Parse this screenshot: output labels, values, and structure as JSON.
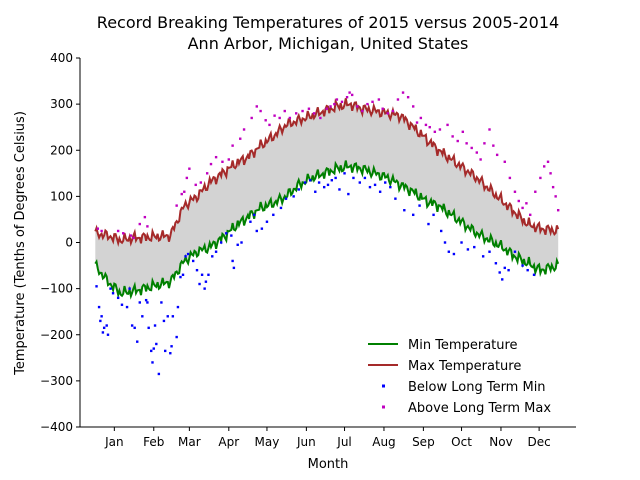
{
  "chart_data": {
    "type": "line",
    "title": [
      "Record Breaking Temperatures of 2015 versus 2005-2014",
      "Ann Arbor, Michigan, United States"
    ],
    "xlabel": "Month",
    "ylabel": "Temperature (Tenths of Degrees Celsius)",
    "ylim": [
      -400,
      400
    ],
    "yticks": [
      -400,
      -300,
      -200,
      -100,
      0,
      100,
      200,
      300,
      400
    ],
    "xlim": [
      -12,
      378
    ],
    "months": [
      "Jan",
      "Feb",
      "Mar",
      "Apr",
      "May",
      "Jun",
      "Jul",
      "Aug",
      "Sep",
      "Oct",
      "Nov",
      "Dec"
    ],
    "month_ticks": [
      15,
      46,
      74,
      105,
      135,
      166,
      196,
      227,
      258,
      288,
      319,
      349
    ],
    "legend_position": "lower-right",
    "colors": {
      "min_line": "#008000",
      "max_line": "#a52a2a",
      "fill": "#d3d3d3",
      "below_points": "#0000ff",
      "above_points": "#c000c0"
    },
    "series": [
      {
        "name": "Min Temperature",
        "kind": "line",
        "x": [
          0,
          10,
          20,
          31,
          45,
          59,
          70,
          80,
          90,
          100,
          110,
          120,
          130,
          140,
          150,
          160,
          170,
          180,
          190,
          200,
          210,
          220,
          230,
          240,
          250,
          260,
          270,
          280,
          290,
          300,
          310,
          320,
          330,
          340,
          350,
          364
        ],
        "y": [
          -50,
          -85,
          -110,
          -105,
          -95,
          -85,
          -40,
          -20,
          -10,
          10,
          35,
          55,
          75,
          85,
          100,
          125,
          140,
          150,
          160,
          165,
          160,
          150,
          140,
          125,
          110,
          90,
          80,
          60,
          40,
          20,
          5,
          -10,
          -30,
          -45,
          -60,
          -50
        ]
      },
      {
        "name": "Max Temperature",
        "kind": "line",
        "x": [
          0,
          10,
          20,
          31,
          45,
          59,
          70,
          80,
          90,
          100,
          110,
          120,
          130,
          140,
          150,
          160,
          170,
          180,
          190,
          200,
          210,
          220,
          230,
          240,
          250,
          260,
          270,
          280,
          290,
          300,
          310,
          320,
          330,
          340,
          350,
          364
        ],
        "y": [
          20,
          15,
          5,
          10,
          12,
          15,
          80,
          100,
          130,
          150,
          170,
          185,
          210,
          230,
          255,
          265,
          275,
          285,
          295,
          300,
          290,
          285,
          280,
          275,
          250,
          225,
          200,
          180,
          160,
          140,
          115,
          90,
          65,
          40,
          30,
          25
        ]
      },
      {
        "name": "Below Long Term Min",
        "kind": "scatter",
        "points": [
          [
            1,
            -95
          ],
          [
            3,
            -140
          ],
          [
            4,
            -170
          ],
          [
            5,
            -160
          ],
          [
            6,
            -195
          ],
          [
            7,
            -185
          ],
          [
            9,
            -180
          ],
          [
            10,
            -200
          ],
          [
            12,
            -100
          ],
          [
            14,
            -110
          ],
          [
            18,
            -120
          ],
          [
            21,
            -135
          ],
          [
            25,
            -140
          ],
          [
            27,
            -100
          ],
          [
            29,
            -180
          ],
          [
            31,
            -185
          ],
          [
            33,
            -215
          ],
          [
            35,
            -130
          ],
          [
            37,
            -160
          ],
          [
            40,
            -125
          ],
          [
            41,
            -130
          ],
          [
            42,
            -185
          ],
          [
            44,
            -235
          ],
          [
            45,
            -260
          ],
          [
            46,
            -230
          ],
          [
            47,
            -180
          ],
          [
            48,
            -220
          ],
          [
            50,
            -285
          ],
          [
            52,
            -130
          ],
          [
            54,
            -170
          ],
          [
            55,
            -235
          ],
          [
            57,
            -160
          ],
          [
            59,
            -240
          ],
          [
            60,
            -225
          ],
          [
            61,
            -160
          ],
          [
            64,
            -205
          ],
          [
            65,
            -140
          ],
          [
            67,
            -75
          ],
          [
            69,
            -70
          ],
          [
            71,
            -30
          ],
          [
            73,
            -25
          ],
          [
            77,
            -40
          ],
          [
            80,
            -60
          ],
          [
            82,
            -90
          ],
          [
            84,
            -70
          ],
          [
            86,
            -100
          ],
          [
            87,
            -85
          ],
          [
            89,
            -70
          ],
          [
            92,
            -30
          ],
          [
            95,
            -20
          ],
          [
            99,
            0
          ],
          [
            103,
            20
          ],
          [
            107,
            15
          ],
          [
            108,
            -40
          ],
          [
            109,
            -55
          ],
          [
            112,
            -5
          ],
          [
            115,
            0
          ],
          [
            122,
            45
          ],
          [
            125,
            60
          ],
          [
            127,
            25
          ],
          [
            131,
            30
          ],
          [
            135,
            45
          ],
          [
            140,
            60
          ],
          [
            146,
            75
          ],
          [
            150,
            95
          ],
          [
            156,
            100
          ],
          [
            160,
            115
          ],
          [
            165,
            130
          ],
          [
            169,
            135
          ],
          [
            173,
            110
          ],
          [
            176,
            130
          ],
          [
            180,
            120
          ],
          [
            183,
            125
          ],
          [
            186,
            135
          ],
          [
            189,
            140
          ],
          [
            192,
            115
          ],
          [
            196,
            150
          ],
          [
            199,
            105
          ],
          [
            203,
            140
          ],
          [
            208,
            130
          ],
          [
            212,
            140
          ],
          [
            216,
            120
          ],
          [
            220,
            125
          ],
          [
            224,
            110
          ],
          [
            228,
            130
          ],
          [
            232,
            120
          ],
          [
            236,
            95
          ],
          [
            243,
            70
          ],
          [
            250,
            60
          ],
          [
            255,
            80
          ],
          [
            262,
            40
          ],
          [
            266,
            60
          ],
          [
            272,
            25
          ],
          [
            275,
            0
          ],
          [
            278,
            -20
          ],
          [
            282,
            -25
          ],
          [
            288,
            0
          ],
          [
            293,
            -15
          ],
          [
            298,
            -10
          ],
          [
            305,
            -30
          ],
          [
            310,
            -20
          ],
          [
            315,
            -45
          ],
          [
            318,
            -65
          ],
          [
            320,
            -80
          ],
          [
            322,
            -55
          ],
          [
            325,
            -60
          ],
          [
            330,
            -20
          ],
          [
            336,
            -50
          ],
          [
            340,
            -60
          ],
          [
            345,
            -70
          ]
        ]
      },
      {
        "name": "Above Long Term Max",
        "kind": "scatter",
        "points": [
          [
            2,
            30
          ],
          [
            5,
            25
          ],
          [
            18,
            25
          ],
          [
            22,
            20
          ],
          [
            28,
            15
          ],
          [
            30,
            10
          ],
          [
            35,
            40
          ],
          [
            39,
            55
          ],
          [
            41,
            35
          ],
          [
            64,
            80
          ],
          [
            68,
            105
          ],
          [
            70,
            110
          ],
          [
            72,
            140
          ],
          [
            74,
            160
          ],
          [
            79,
            125
          ],
          [
            83,
            130
          ],
          [
            88,
            150
          ],
          [
            91,
            170
          ],
          [
            95,
            185
          ],
          [
            100,
            175
          ],
          [
            105,
            180
          ],
          [
            108,
            210
          ],
          [
            114,
            225
          ],
          [
            117,
            245
          ],
          [
            123,
            270
          ],
          [
            127,
            295
          ],
          [
            130,
            285
          ],
          [
            134,
            265
          ],
          [
            137,
            255
          ],
          [
            141,
            275
          ],
          [
            145,
            270
          ],
          [
            149,
            285
          ],
          [
            153,
            270
          ],
          [
            158,
            280
          ],
          [
            163,
            285
          ],
          [
            168,
            290
          ],
          [
            172,
            280
          ],
          [
            177,
            270
          ],
          [
            182,
            290
          ],
          [
            185,
            295
          ],
          [
            188,
            300
          ],
          [
            190,
            310
          ],
          [
            194,
            305
          ],
          [
            198,
            315
          ],
          [
            200,
            325
          ],
          [
            202,
            320
          ],
          [
            206,
            295
          ],
          [
            210,
            285
          ],
          [
            214,
            300
          ],
          [
            218,
            305
          ],
          [
            223,
            310
          ],
          [
            226,
            290
          ],
          [
            230,
            280
          ],
          [
            234,
            285
          ],
          [
            238,
            310
          ],
          [
            242,
            325
          ],
          [
            246,
            315
          ],
          [
            250,
            295
          ],
          [
            253,
            260
          ],
          [
            256,
            270
          ],
          [
            260,
            255
          ],
          [
            263,
            250
          ],
          [
            267,
            240
          ],
          [
            271,
            245
          ],
          [
            277,
            255
          ],
          [
            281,
            230
          ],
          [
            285,
            220
          ],
          [
            289,
            240
          ],
          [
            292,
            215
          ],
          [
            296,
            205
          ],
          [
            300,
            195
          ],
          [
            303,
            180
          ],
          [
            306,
            215
          ],
          [
            310,
            245
          ],
          [
            313,
            210
          ],
          [
            316,
            190
          ],
          [
            322,
            175
          ],
          [
            326,
            140
          ],
          [
            330,
            110
          ],
          [
            333,
            90
          ],
          [
            336,
            75
          ],
          [
            339,
            85
          ],
          [
            342,
            60
          ],
          [
            346,
            110
          ],
          [
            350,
            140
          ],
          [
            353,
            165
          ],
          [
            356,
            175
          ],
          [
            358,
            150
          ],
          [
            360,
            120
          ],
          [
            362,
            100
          ],
          [
            364,
            70
          ]
        ]
      }
    ]
  }
}
